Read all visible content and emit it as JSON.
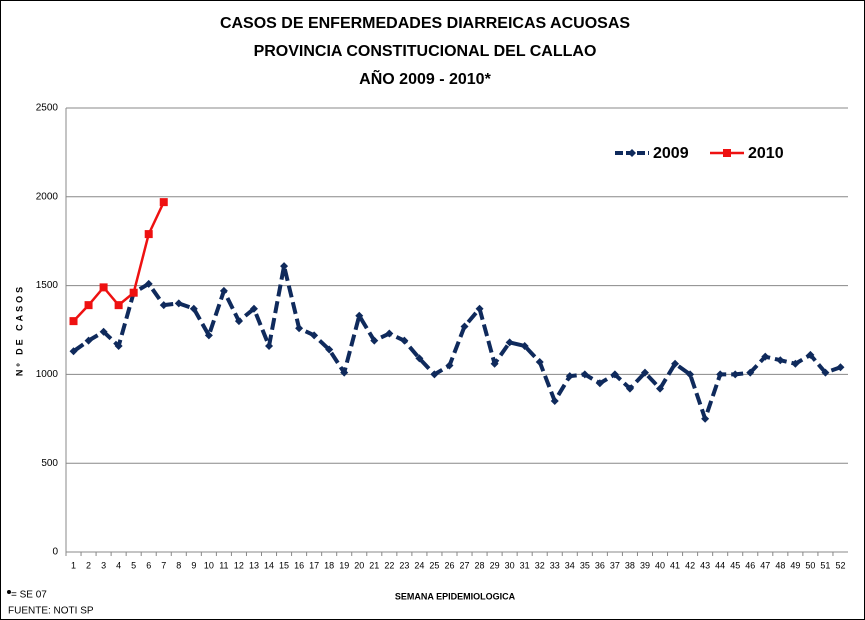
{
  "chart_data": {
    "type": "line",
    "title": [
      "CASOS DE ENFERMEDADES  DIARREICAS  ACUOSAS",
      "PROVINCIA  CONSTITUCIONAL  DEL  CALLAO",
      "AÑO 2009 - 2010*"
    ],
    "x_label": "SEMANA EPIDEMIOLOGICA",
    "y_label": "Nº DE CASOS",
    "footnotes": [
      "= SE 07",
      "FUENTE: NOTI SP"
    ],
    "categories": [
      "1",
      "2",
      "3",
      "4",
      "5",
      "6",
      "7",
      "8",
      "9",
      "10",
      "11",
      "12",
      "13",
      "14",
      "15",
      "16",
      "17",
      "18",
      "19",
      "20",
      "21",
      "22",
      "23",
      "24",
      "25",
      "26",
      "27",
      "28",
      "29",
      "30",
      "31",
      "32",
      "33",
      "34",
      "35",
      "36",
      "37",
      "38",
      "39",
      "40",
      "41",
      "42",
      "43",
      "44",
      "45",
      "46",
      "47",
      "48",
      "49",
      "50",
      "51",
      "52"
    ],
    "series": [
      {
        "name": "2009",
        "color": "#0f2a5c",
        "dashed": true,
        "marker": "diamond",
        "values": [
          1130,
          1190,
          1240,
          1160,
          1460,
          1510,
          1390,
          1400,
          1370,
          1220,
          1470,
          1300,
          1370,
          1160,
          1610,
          1260,
          1220,
          1140,
          1010,
          1330,
          1190,
          1230,
          1190,
          1090,
          1000,
          1050,
          1270,
          1370,
          1060,
          1180,
          1160,
          1070,
          850,
          990,
          1000,
          950,
          1000,
          920,
          1010,
          920,
          1060,
          1000,
          750,
          1000,
          1000,
          1010,
          1100,
          1080,
          1060,
          1110,
          1010,
          1040
        ]
      },
      {
        "name": "2010",
        "color": "#ee1111",
        "dashed": false,
        "marker": "square",
        "values": [
          1300,
          1390,
          1490,
          1390,
          1460,
          1790,
          1970,
          null,
          null,
          null,
          null,
          null,
          null,
          null,
          null,
          null,
          null,
          null,
          null,
          null,
          null,
          null,
          null,
          null,
          null,
          null,
          null,
          null,
          null,
          null,
          null,
          null,
          null,
          null,
          null,
          null,
          null,
          null,
          null,
          null,
          null,
          null,
          null,
          null,
          null,
          null,
          null,
          null,
          null,
          null,
          null,
          null
        ]
      }
    ],
    "ylim": [
      0,
      2500
    ],
    "yticks": [
      0,
      500,
      1000,
      1500,
      2000,
      2500
    ],
    "grid": true,
    "legend": "top-right"
  }
}
